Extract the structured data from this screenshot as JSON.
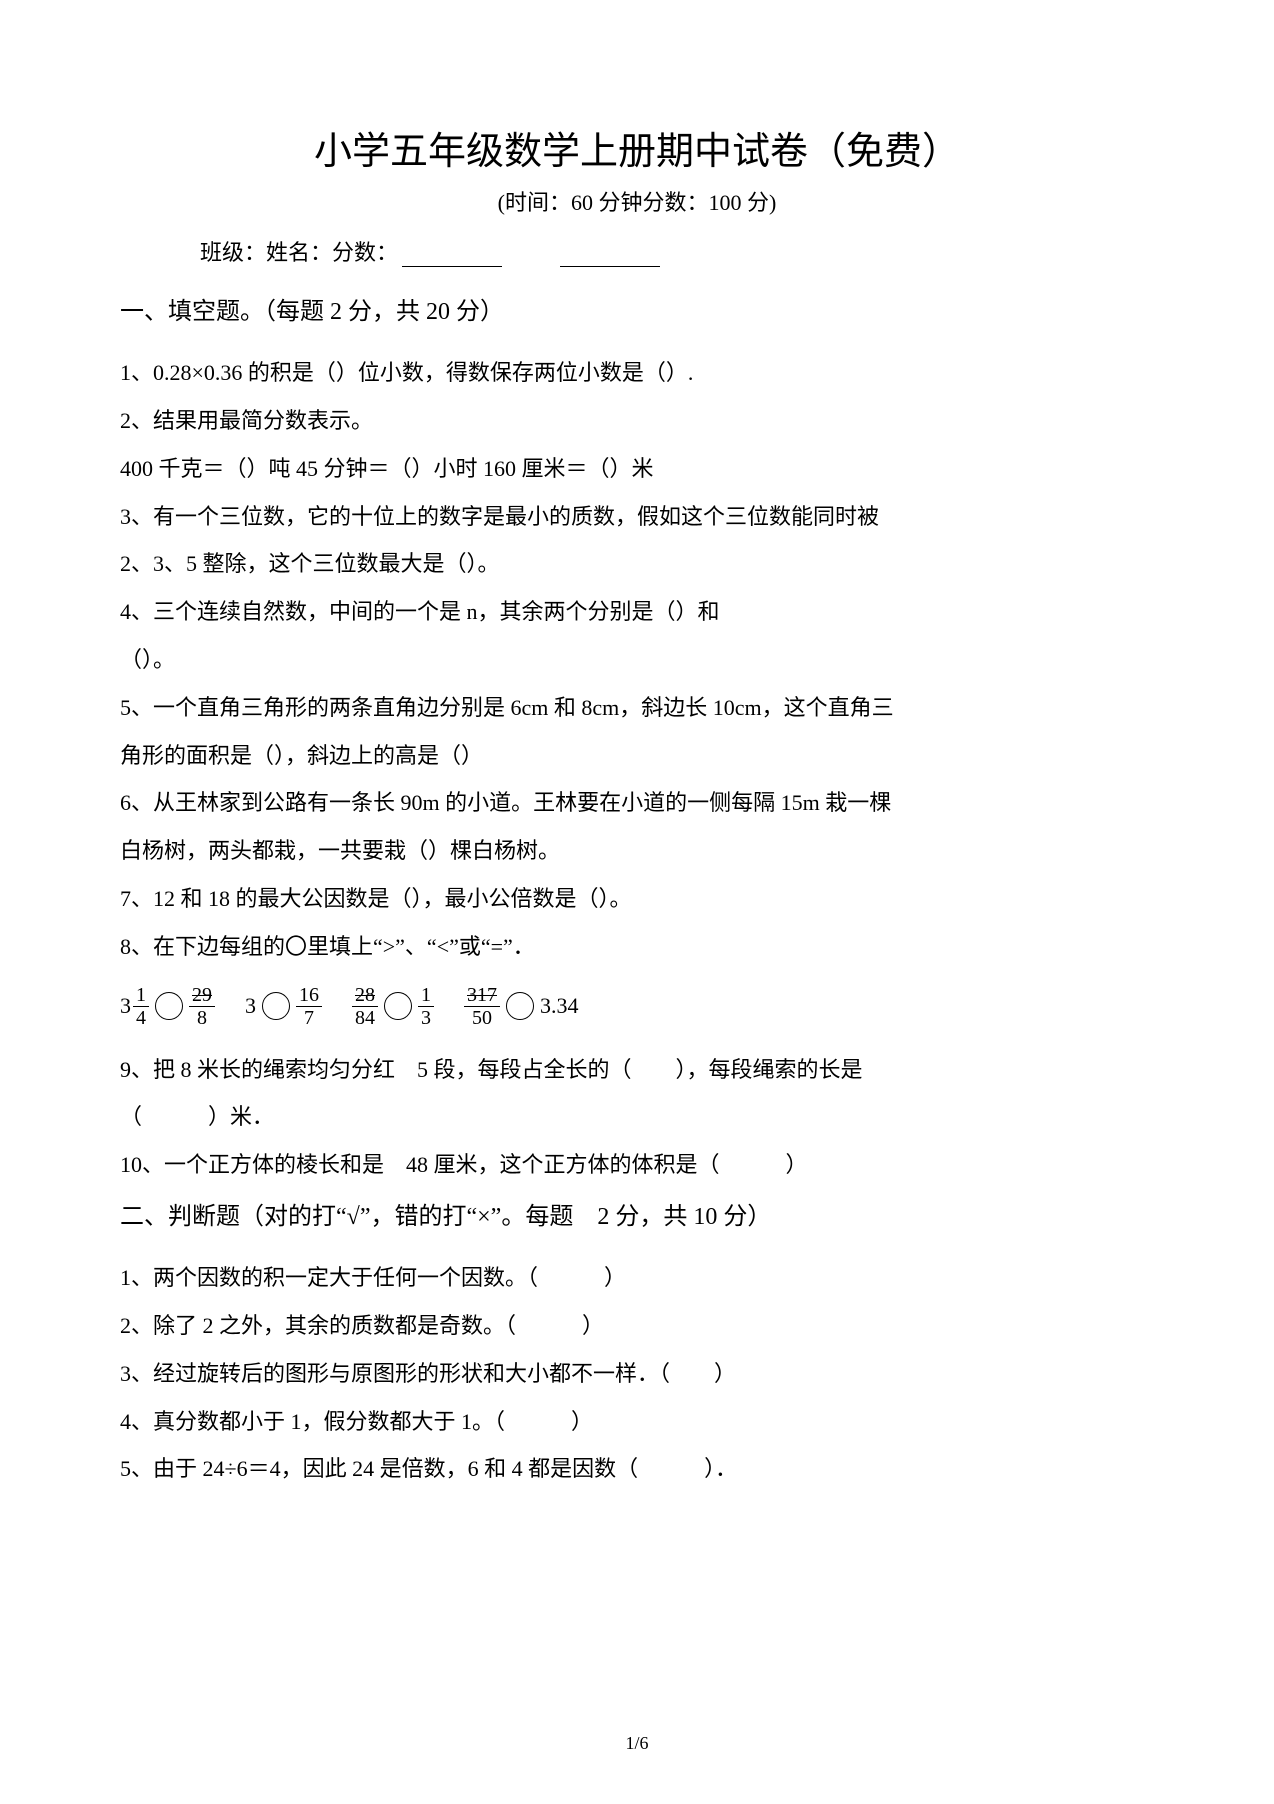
{
  "title": "小学五年级数学上册期中试卷（免费）",
  "subtitle": "(时间：60 分钟分数：100 分)",
  "info": {
    "class_label": "班级：",
    "name_label": "姓名：",
    "score_label": "分数："
  },
  "section1": {
    "header": "一、填空题。（每题 2 分，共 20 分）",
    "q1": "1、0.28×0.36 的积是（）位小数，得数保存两位小数是（）.",
    "q2": "2、结果用最简分数表示。",
    "q2b": "400 千克＝（）吨 45 分钟＝（）小时 160 厘米＝（）米",
    "q3": "3、有一个三位数，它的十位上的数字是最小的质数，假如这个三位数能同时被",
    "q3b": "2、3、5 整除，这个三位数最大是（）。",
    "q4": "4、三个连续自然数，中间的一个是 n，其余两个分别是（）和",
    "q4b": "（）。",
    "q5": "5、一个直角三角形的两条直角边分别是 6cm 和 8cm，斜边长 10cm，这个直角三",
    "q5b": "角形的面积是（），斜边上的高是（）",
    "q6": "6、从王林家到公路有一条长 90m 的小道。王林要在小道的一侧每隔 15m 栽一棵",
    "q6b": "白杨树，两头都栽，一共要栽（）棵白杨树。",
    "q7": "7、12 和 18 的最大公因数是（），最小公倍数是（）。",
    "q8": "8、在下边每组的〇里填上“>”、“<”或“=”．",
    "q8_items": {
      "a_whole": "3",
      "a_num": "1",
      "a_den": "4",
      "a_rnum": "29",
      "a_rden": "8",
      "b_left": "3",
      "b_num": "16",
      "b_den": "7",
      "c_lnum": "28",
      "c_lden": "84",
      "c_rnum": "1",
      "c_rden": "3",
      "d_lnum": "317",
      "d_lden": "50",
      "d_right": "3.34"
    },
    "q9": "9、把 8 米长的绳索均匀分红　5 段，每段占全长的（　　），每段绳索的长是",
    "q9b": "（　　　）米．",
    "q10": "10、一个正方体的棱长和是　48 厘米，这个正方体的体积是（　　　）"
  },
  "section2": {
    "header": "二、判断题（对的打“√”，错的打“×”。每题　2 分，共 10 分）",
    "q1": "1、两个因数的积一定大于任何一个因数。（　　　）",
    "q2": "2、除了 2 之外，其余的质数都是奇数。（　　　）",
    "q3": "3、经过旋转后的图形与原图形的形状和大小都不一样．（　　）",
    "q4": "4、真分数都小于 1，假分数都大于 1。（　　　）",
    "q5": "5、由于 24÷6＝4，因此 24 是倍数，6 和 4 都是因数（　　　）．"
  },
  "page_number": "1/6"
}
